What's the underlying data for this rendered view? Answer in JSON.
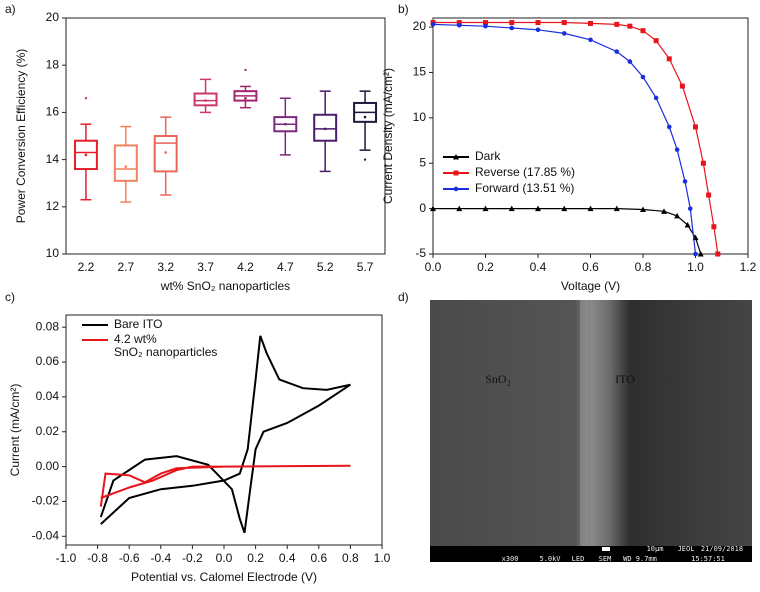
{
  "chart_data": [
    {
      "type": "box",
      "panel_label": "a)",
      "xlabel": "wt% SnO₂ nanoparticles",
      "ylabel": "Power Conversion Efficiency (%)",
      "categories": [
        "2.2",
        "2.7",
        "3.2",
        "3.7",
        "4.2",
        "4.7",
        "5.2",
        "5.7"
      ],
      "colors": [
        "#e3202a",
        "#f2825f",
        "#e8665a",
        "#cc3768",
        "#a3246c",
        "#7a2a7c",
        "#4c1b6a",
        "#1b1a3c"
      ],
      "boxes": [
        {
          "min": 12.3,
          "q1": 13.6,
          "median": 14.3,
          "q3": 14.8,
          "max": 15.5,
          "mean": 14.2,
          "outliers": [
            16.6
          ]
        },
        {
          "min": 12.2,
          "q1": 13.1,
          "median": 13.6,
          "q3": 14.6,
          "max": 15.4,
          "mean": 13.7,
          "outliers": []
        },
        {
          "min": 12.5,
          "q1": 13.5,
          "median": 14.7,
          "q3": 15.0,
          "max": 15.8,
          "mean": 14.3,
          "outliers": []
        },
        {
          "min": 16.0,
          "q1": 16.3,
          "median": 16.5,
          "q3": 16.8,
          "max": 17.4,
          "mean": 16.5,
          "outliers": []
        },
        {
          "min": 16.2,
          "q1": 16.5,
          "median": 16.7,
          "q3": 16.9,
          "max": 17.1,
          "mean": 16.6,
          "outliers": [
            17.8
          ]
        },
        {
          "min": 14.2,
          "q1": 15.2,
          "median": 15.5,
          "q3": 15.8,
          "max": 16.6,
          "mean": 15.5,
          "outliers": []
        },
        {
          "min": 13.5,
          "q1": 14.8,
          "median": 15.3,
          "q3": 15.9,
          "max": 16.9,
          "mean": 15.3,
          "outliers": []
        },
        {
          "min": 14.4,
          "q1": 15.6,
          "median": 16.0,
          "q3": 16.4,
          "max": 16.9,
          "mean": 15.8,
          "outliers": [
            14.0
          ]
        }
      ],
      "ylim": [
        10,
        20
      ],
      "yticks": [
        10,
        12,
        14,
        16,
        18,
        20
      ]
    },
    {
      "type": "line",
      "panel_label": "b)",
      "xlabel": "Voltage (V)",
      "ylabel": "Current Density (mA/cm²)",
      "xlim": [
        0,
        1.2
      ],
      "xticks": [
        {
          "value": 0,
          "label": "0.0"
        },
        0.2,
        0.4,
        0.6,
        0.8,
        {
          "value": 1,
          "label": "1.0"
        },
        1.2
      ],
      "ylim": [
        -5,
        21
      ],
      "yticks": [
        -5,
        0,
        5,
        10,
        15,
        20
      ],
      "legend": "bottom-left",
      "series": [
        {
          "name": "Dark",
          "color": "#000000",
          "marker": "triangle",
          "x": [
            0,
            0.1,
            0.2,
            0.3,
            0.4,
            0.5,
            0.6,
            0.7,
            0.8,
            0.88,
            0.93,
            0.97,
            1.0,
            1.02
          ],
          "values": [
            0,
            0,
            0,
            0,
            0,
            0,
            0,
            0,
            -0.1,
            -0.3,
            -0.8,
            -1.8,
            -3.2,
            -5
          ]
        },
        {
          "name": "Reverse (17.85 %)",
          "color": "#e8141c",
          "marker": "square",
          "x": [
            0,
            0.1,
            0.2,
            0.3,
            0.4,
            0.5,
            0.6,
            0.7,
            0.75,
            0.8,
            0.85,
            0.9,
            0.95,
            1.0,
            1.03,
            1.05,
            1.07,
            1.085
          ],
          "values": [
            20.5,
            20.5,
            20.5,
            20.5,
            20.5,
            20.5,
            20.4,
            20.3,
            20.1,
            19.6,
            18.5,
            16.5,
            13.5,
            9,
            5,
            1.5,
            -2,
            -5
          ]
        },
        {
          "name": "Forward (13.51 %)",
          "color": "#1a2ee0",
          "marker": "circle",
          "x": [
            0,
            0.1,
            0.2,
            0.3,
            0.4,
            0.5,
            0.6,
            0.7,
            0.75,
            0.8,
            0.85,
            0.9,
            0.93,
            0.96,
            0.98,
            1.0
          ],
          "values": [
            20.3,
            20.2,
            20.1,
            19.9,
            19.7,
            19.3,
            18.6,
            17.3,
            16.2,
            14.5,
            12.2,
            9,
            6.5,
            3,
            0,
            -5
          ]
        }
      ]
    },
    {
      "type": "line",
      "panel_label": "c)",
      "xlabel": "Potential vs. Calomel Electrode (V)",
      "ylabel": "Current (mA/cm²)",
      "xlim": [
        -1,
        1
      ],
      "xticks": [
        {
          "value": -1,
          "label": "-1.0"
        },
        -0.8,
        -0.6,
        -0.4,
        -0.2,
        {
          "value": 0,
          "label": "0.0"
        },
        0.2,
        0.4,
        0.6,
        0.8,
        {
          "value": 1,
          "label": "1.0"
        }
      ],
      "ylim": [
        -0.045,
        0.087
      ],
      "yticks": [
        -0.04,
        -0.02,
        {
          "value": 0,
          "label": "0.00"
        },
        0.02,
        0.04,
        0.06,
        0.08
      ],
      "legend": "top-left",
      "series": [
        {
          "name": "Bare ITO",
          "color": "#000000",
          "x": [
            -0.78,
            -0.6,
            -0.4,
            -0.2,
            0,
            0.1,
            0.15,
            0.2,
            0.23,
            0.27,
            0.35,
            0.5,
            0.65,
            0.8,
            0.6,
            0.4,
            0.25,
            0.2,
            0.17,
            0.13,
            0.1,
            0.05,
            -0.1,
            -0.3,
            -0.5,
            -0.7,
            -0.78
          ],
          "values": [
            -0.033,
            -0.018,
            -0.013,
            -0.011,
            -0.008,
            -0.004,
            0.01,
            0.05,
            0.075,
            0.065,
            0.05,
            0.045,
            0.044,
            0.047,
            0.035,
            0.025,
            0.02,
            0.01,
            -0.01,
            -0.038,
            -0.03,
            -0.013,
            0.001,
            0.006,
            0.004,
            -0.008,
            -0.029
          ]
        },
        {
          "name": "4.2 wt% SnO₂ nanoparticles",
          "color": "#e8141c",
          "x": [
            -0.78,
            -0.6,
            -0.45,
            -0.3,
            -0.2,
            0,
            0.8,
            0,
            -0.3,
            -0.4,
            -0.5,
            -0.6,
            -0.75,
            -0.78
          ],
          "values": [
            -0.018,
            -0.012,
            -0.008,
            -0.002,
            0,
            0,
            0.0005,
            0,
            -0.001,
            -0.004,
            -0.009,
            -0.005,
            -0.004,
            -0.023
          ]
        }
      ]
    },
    {
      "type": "image",
      "panel_label": "d)",
      "labels": [
        "SnO₂",
        "ITO"
      ],
      "info": [
        "x300",
        "5.0kV",
        "LED",
        "SEM",
        "WD 9.7mm",
        "15:57:51",
        "10µm",
        "JEOL",
        "21/09/2018"
      ]
    }
  ]
}
